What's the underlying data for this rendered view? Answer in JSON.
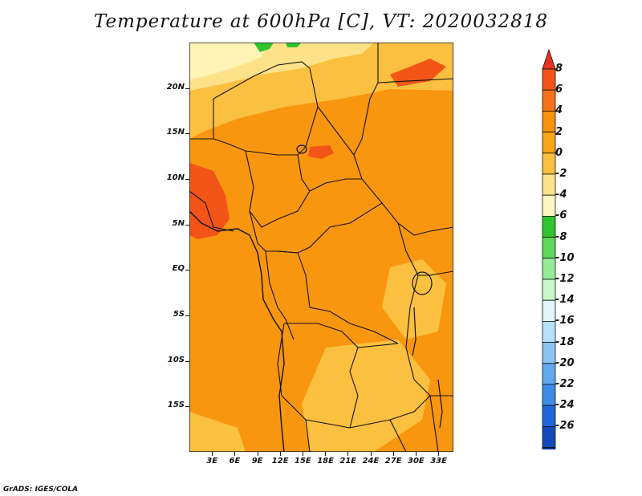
{
  "title": "Temperature at 600hPa [C], VT: 2020032818",
  "credit": "GrADS: IGES/COLA",
  "lat_labels": [
    {
      "text": "20N",
      "lat": 20
    },
    {
      "text": "15N",
      "lat": 15
    },
    {
      "text": "10N",
      "lat": 10
    },
    {
      "text": "5N",
      "lat": 5
    },
    {
      "text": "EQ",
      "lat": 0
    },
    {
      "text": "5S",
      "lat": -5
    },
    {
      "text": "10S",
      "lat": -10
    },
    {
      "text": "15S",
      "lat": -15
    }
  ],
  "lon_labels": [
    {
      "text": "3E",
      "lon": 3
    },
    {
      "text": "6E",
      "lon": 6
    },
    {
      "text": "9E",
      "lon": 9
    },
    {
      "text": "12E",
      "lon": 12
    },
    {
      "text": "15E",
      "lon": 15
    },
    {
      "text": "18E",
      "lon": 18
    },
    {
      "text": "21E",
      "lon": 21
    },
    {
      "text": "24E",
      "lon": 24
    },
    {
      "text": "27E",
      "lon": 27
    },
    {
      "text": "30E",
      "lon": 30
    },
    {
      "text": "33E",
      "lon": 33
    }
  ],
  "map_extent": {
    "lon_min": 0,
    "lon_max": 35,
    "lat_min": -20,
    "lat_max": 25
  },
  "colorbar": {
    "ticks": [
      "8",
      "6",
      "4",
      "2",
      "0",
      "-2",
      "-4",
      "-6",
      "-8",
      "-10",
      "-12",
      "-14",
      "-16",
      "-18",
      "-20",
      "-22",
      "-24",
      "-26"
    ],
    "colors": [
      "#e8321f",
      "#f25517",
      "#f5701a",
      "#f8920f",
      "#f9a418",
      "#fbc03f",
      "#fde28a",
      "#fff7c0",
      "#30c430",
      "#5cd85c",
      "#96ec96",
      "#c8f8c8",
      "#e1f5fb",
      "#b7e0fa",
      "#8ec4f5",
      "#61a8ef",
      "#3c8be6",
      "#2066d8",
      "#1448bd",
      "#0c2f96",
      "#08186a",
      "#dcdcf5"
    ]
  }
}
